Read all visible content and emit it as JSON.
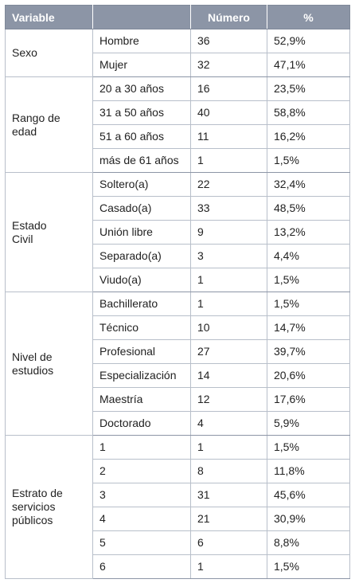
{
  "header": {
    "variable": "Variable",
    "blank": "",
    "numero": "Número",
    "pct": "%"
  },
  "groups": [
    {
      "label": "Sexo",
      "rows": [
        {
          "cat": "Hombre",
          "n": "36",
          "p": "52,9%"
        },
        {
          "cat": "Mujer",
          "n": "32",
          "p": "47,1%"
        }
      ]
    },
    {
      "label": "Rango de edad",
      "rows": [
        {
          "cat": "20 a 30 años",
          "n": "16",
          "p": "23,5%"
        },
        {
          "cat": "31 a 50 años",
          "n": "40",
          "p": "58,8%"
        },
        {
          "cat": "51 a 60 años",
          "n": "11",
          "p": "16,2%"
        },
        {
          "cat": "más de 61 años",
          "n": "1",
          "p": "1,5%"
        }
      ]
    },
    {
      "label": "Estado Civil",
      "rows": [
        {
          "cat": "Soltero(a)",
          "n": "22",
          "p": "32,4%"
        },
        {
          "cat": "Casado(a)",
          "n": "33",
          "p": "48,5%"
        },
        {
          "cat": "Unión libre",
          "n": "9",
          "p": "13,2%"
        },
        {
          "cat": "Separado(a)",
          "n": "3",
          "p": "4,4%"
        },
        {
          "cat": "Viudo(a)",
          "n": "1",
          "p": "1,5%"
        }
      ]
    },
    {
      "label": "Nivel de estudios",
      "rows": [
        {
          "cat": "Bachillerato",
          "n": "1",
          "p": "1,5%"
        },
        {
          "cat": "Técnico",
          "n": "10",
          "p": "14,7%"
        },
        {
          "cat": "Profesional",
          "n": "27",
          "p": "39,7%"
        },
        {
          "cat": "Especialización",
          "n": "14",
          "p": "20,6%"
        },
        {
          "cat": "Maestría",
          "n": "12",
          "p": "17,6%"
        },
        {
          "cat": "Doctorado",
          "n": "4",
          "p": "5,9%"
        }
      ]
    },
    {
      "label": "Estrato de servicios públicos",
      "rows": [
        {
          "cat": "1",
          "n": "1",
          "p": "1,5%"
        },
        {
          "cat": "2",
          "n": "8",
          "p": "11,8%"
        },
        {
          "cat": "3",
          "n": "31",
          "p": "45,6%"
        },
        {
          "cat": "4",
          "n": "21",
          "p": "30,9%"
        },
        {
          "cat": "5",
          "n": "6",
          "p": "8,8%"
        },
        {
          "cat": "6",
          "n": "1",
          "p": "1,5%"
        }
      ]
    }
  ]
}
